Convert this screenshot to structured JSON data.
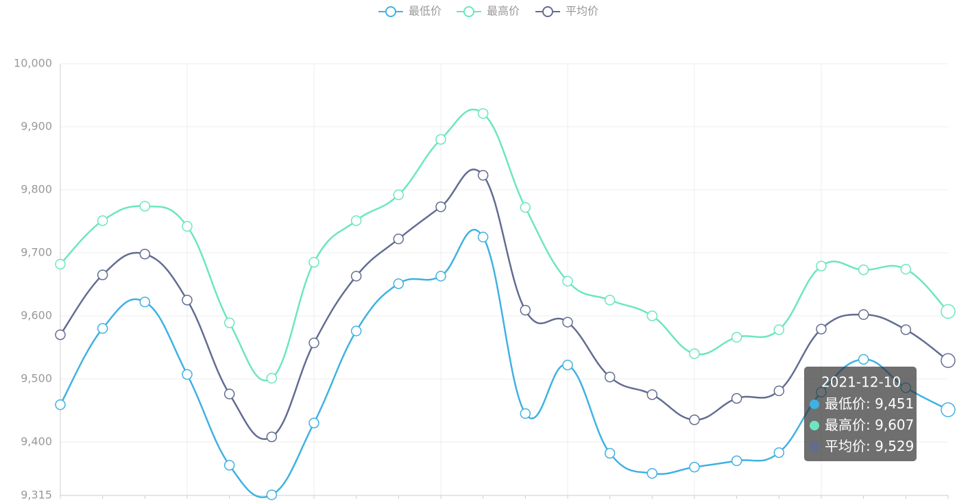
{
  "chart_data": {
    "type": "line",
    "smooth": true,
    "categories": [
      null,
      null,
      null,
      null,
      null,
      null,
      null,
      null,
      null,
      null,
      null,
      null,
      null,
      null,
      null,
      null,
      null,
      null,
      null,
      null,
      null,
      "2021-12-10"
    ],
    "series": [
      {
        "name": "最低价",
        "color": "#3fb1e3",
        "values": [
          9459,
          9580,
          9622,
          9507,
          9363,
          9316,
          9430,
          9576,
          9651,
          9663,
          9725,
          9445,
          9522,
          9382,
          9350,
          9360,
          9370,
          9383,
          9479,
          9531,
          9486,
          9451
        ],
        "value_labels": [
          null,
          null,
          null,
          null,
          null,
          null,
          null,
          null,
          null,
          null,
          null,
          null,
          null,
          null,
          null,
          null,
          null,
          null,
          null,
          null,
          null,
          "9,451"
        ]
      },
      {
        "name": "最高价",
        "color": "#6be6c1",
        "values": [
          9682,
          9751,
          9774,
          9742,
          9589,
          9501,
          9685,
          9751,
          9792,
          9880,
          9921,
          9772,
          9655,
          9625,
          9600,
          9540,
          9566,
          9578,
          9679,
          9673,
          9674,
          9607
        ],
        "value_labels": [
          null,
          null,
          null,
          null,
          null,
          null,
          null,
          null,
          null,
          null,
          null,
          null,
          null,
          null,
          null,
          null,
          null,
          null,
          null,
          null,
          null,
          "9,607"
        ]
      },
      {
        "name": "平均价",
        "color": "#626c91",
        "values": [
          9570,
          9665,
          9698,
          9625,
          9476,
          9408,
          9557,
          9663,
          9722,
          9773,
          9823,
          9609,
          9590,
          9503,
          9475,
          9435,
          9469,
          9481,
          9579,
          9602,
          9578,
          9529
        ],
        "value_labels": [
          null,
          null,
          null,
          null,
          null,
          null,
          null,
          null,
          null,
          null,
          null,
          null,
          null,
          null,
          null,
          null,
          null,
          null,
          null,
          null,
          null,
          "9,529"
        ]
      }
    ],
    "ylim": [
      9315,
      10000
    ],
    "yticks": [
      {
        "value": 9315,
        "label": "9,315"
      },
      {
        "value": 9400,
        "label": "9,400"
      },
      {
        "value": 9500,
        "label": "9,500"
      },
      {
        "value": 9600,
        "label": "9,600"
      },
      {
        "value": 9700,
        "label": "9,700"
      },
      {
        "value": 9800,
        "label": "9,800"
      },
      {
        "value": 9900,
        "label": "9,900"
      },
      {
        "value": 10000,
        "label": "10,000"
      }
    ],
    "grid": true,
    "legend": "top"
  }
}
